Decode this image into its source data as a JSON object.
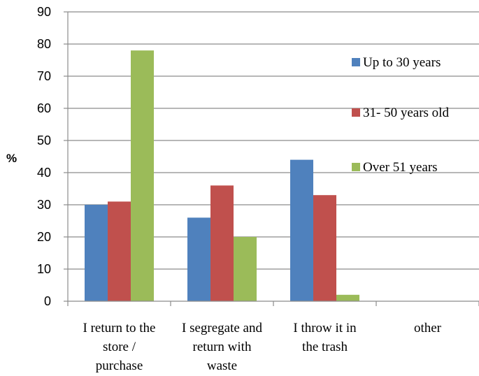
{
  "chart_data": {
    "type": "bar",
    "title": "",
    "xlabel": "",
    "ylabel": "%",
    "ylim": [
      0,
      90
    ],
    "yticks": [
      0,
      10,
      20,
      30,
      40,
      50,
      60,
      70,
      80,
      90
    ],
    "grid": true,
    "legend_position": "right",
    "categories": [
      [
        "I return to the",
        "store /",
        "purchase"
      ],
      [
        "I segregate and",
        "return with",
        "waste"
      ],
      [
        "I throw it in",
        "the trash"
      ],
      [
        "other"
      ]
    ],
    "series": [
      {
        "name": "Up to 30 years",
        "color": "#4F81BD",
        "values": [
          30,
          26,
          44,
          0
        ]
      },
      {
        "name": "31- 50 years old",
        "color": "#C0504D",
        "values": [
          31,
          36,
          33,
          0
        ]
      },
      {
        "name": "Over 51 years",
        "color": "#9BBB59",
        "values": [
          78,
          20,
          2,
          0
        ]
      }
    ]
  }
}
